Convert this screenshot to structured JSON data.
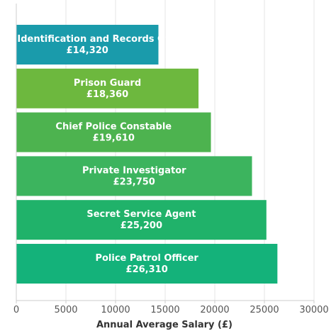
{
  "chart_data": {
    "type": "bar",
    "orientation": "horizontal",
    "categories": [
      "Police Identification and Records Officer",
      "Prison Guard",
      "Chief Police Constable",
      "Private Investigator",
      "Secret Service Agent",
      "Police Patrol Officer"
    ],
    "values": [
      14320,
      18360,
      19610,
      23750,
      25200,
      26310
    ],
    "value_labels": [
      "£14,320",
      "£18,360",
      "£19,610",
      "£23,750",
      "£25,200",
      "£26,310"
    ],
    "colors": [
      "#1a9bab",
      "#6db83e",
      "#4db34f",
      "#3cb45e",
      "#20b26a",
      "#14b27a"
    ],
    "xlabel": "Annual Average Salary (£)",
    "ylabel": "",
    "title": "",
    "xlim": [
      0,
      30000
    ],
    "xticks": [
      0,
      5000,
      10000,
      15000,
      20000,
      25000,
      30000
    ],
    "xtick_labels": [
      "0",
      "5000",
      "10000",
      "15000",
      "20000",
      "25000",
      "30000"
    ],
    "grid": "vertical",
    "legend": "none"
  }
}
